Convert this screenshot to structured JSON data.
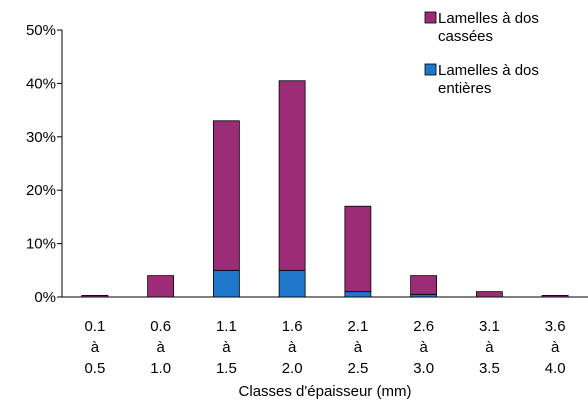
{
  "chart_data": {
    "type": "bar",
    "stacked": true,
    "categories": [
      [
        "0.1",
        "à",
        "0.5"
      ],
      [
        "0.6",
        "à",
        "1.0"
      ],
      [
        "1.1",
        "à",
        "1.5"
      ],
      [
        "1.6",
        "à",
        "2.0"
      ],
      [
        "2.1",
        "à",
        "2.5"
      ],
      [
        "2.6",
        "à",
        "3.0"
      ],
      [
        "3.1",
        "à",
        "3.5"
      ],
      [
        "3.6",
        "à",
        "4.0"
      ]
    ],
    "series": [
      {
        "name": [
          "Lamelles à dos",
          "entières"
        ],
        "color": "#1f77c9",
        "values": [
          0,
          0,
          5,
          5,
          1,
          0.5,
          0,
          0
        ]
      },
      {
        "name": [
          "Lamelles à dos",
          "cassées"
        ],
        "color": "#9b2d77",
        "values": [
          0.3,
          4,
          28,
          35.5,
          16,
          3.5,
          1,
          0.3
        ]
      }
    ],
    "title": "",
    "xlabel": "Classes d'épaisseur (mm)",
    "ylabel": "",
    "ylim": [
      0,
      50
    ],
    "yticks": [
      "0%",
      "10%",
      "20%",
      "30%",
      "40%",
      "50%"
    ],
    "ytick_values": [
      0,
      10,
      20,
      30,
      40,
      50
    ],
    "grid": false,
    "legend_position": "top-right"
  }
}
